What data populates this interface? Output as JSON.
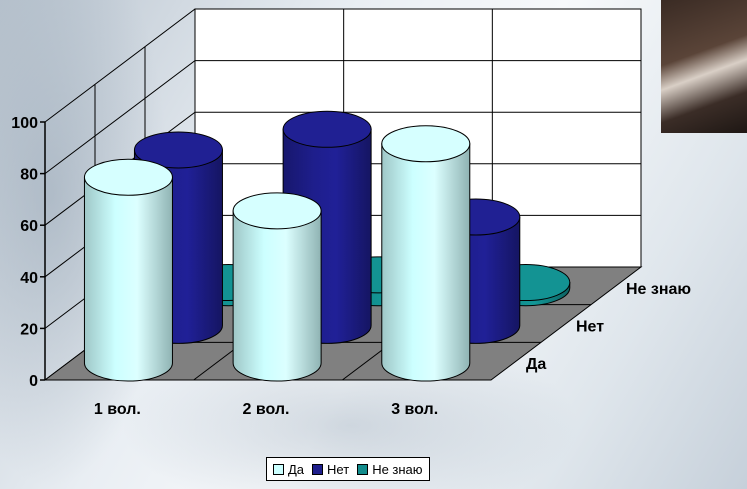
{
  "chart_data": {
    "type": "bar",
    "style": "3d-cylinder",
    "categories": [
      "1 вол.",
      "2 вол.",
      "3 вол."
    ],
    "series": [
      {
        "name": "Да",
        "values": [
          72,
          59,
          85
        ],
        "color": "#ccffff"
      },
      {
        "name": "Нет",
        "values": [
          68,
          76,
          42
        ],
        "color": "#1e1e8c"
      },
      {
        "name": "Не знаю",
        "values": [
          2,
          5,
          2
        ],
        "color": "#128c8c"
      }
    ],
    "yticks": [
      "0",
      "20",
      "40",
      "60",
      "80",
      "100"
    ],
    "ylim": [
      0,
      100
    ],
    "depth_labels": [
      "Да",
      "Нет",
      "Не знаю"
    ],
    "grid": true,
    "legend": {
      "position": "bottom",
      "items": [
        "Да",
        "Нет",
        "Не знаю"
      ]
    },
    "colors": {
      "floor": "#808080",
      "wall": "#ffffff",
      "grid": "#000000"
    }
  }
}
